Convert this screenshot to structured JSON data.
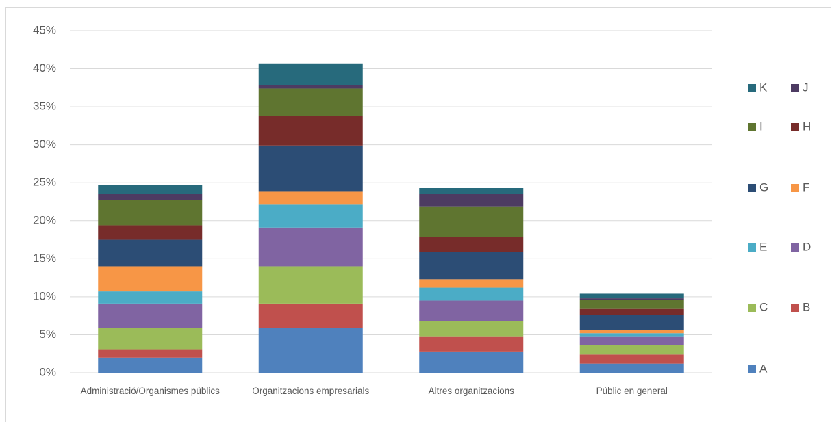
{
  "chart_data": {
    "type": "stacked-bar",
    "categories": [
      "Administració/Organismes públics",
      "Organitzacions empresarials",
      "Altres organitzacions",
      "Públic en general"
    ],
    "series": [
      {
        "name": "A",
        "color": "#4f81bd",
        "values": [
          2.0,
          5.9,
          2.8,
          1.2
        ]
      },
      {
        "name": "B",
        "color": "#c0504d",
        "values": [
          1.1,
          3.2,
          2.0,
          1.2
        ]
      },
      {
        "name": "C",
        "color": "#9bbb59",
        "values": [
          2.8,
          4.9,
          2.0,
          1.2
        ]
      },
      {
        "name": "D",
        "color": "#8064a2",
        "values": [
          3.2,
          5.1,
          2.7,
          1.2
        ]
      },
      {
        "name": "E",
        "color": "#4bacc6",
        "values": [
          1.6,
          3.1,
          1.7,
          0.4
        ]
      },
      {
        "name": "F",
        "color": "#f79646",
        "values": [
          3.3,
          1.7,
          1.1,
          0.4
        ]
      },
      {
        "name": "G",
        "color": "#2c4d75",
        "values": [
          3.5,
          6.0,
          3.6,
          2.0
        ]
      },
      {
        "name": "H",
        "color": "#772c2a",
        "values": [
          1.9,
          3.9,
          2.0,
          0.8
        ]
      },
      {
        "name": "I",
        "color": "#5f7530",
        "values": [
          3.3,
          3.6,
          4.0,
          1.2
        ]
      },
      {
        "name": "J",
        "color": "#4d3b62",
        "values": [
          0.8,
          0.4,
          1.6,
          0.2
        ]
      },
      {
        "name": "K",
        "color": "#276a7c",
        "values": [
          1.2,
          2.9,
          0.8,
          0.6
        ]
      }
    ],
    "ylim": [
      0,
      45
    ],
    "yticks": [
      {
        "value": 0,
        "label": "0%"
      },
      {
        "value": 5,
        "label": "5%"
      },
      {
        "value": 10,
        "label": "10%"
      },
      {
        "value": 15,
        "label": "15%"
      },
      {
        "value": 20,
        "label": "20%"
      },
      {
        "value": 25,
        "label": "25%"
      },
      {
        "value": 30,
        "label": "30%"
      },
      {
        "value": 35,
        "label": "35%"
      },
      {
        "value": 40,
        "label": "40%"
      },
      {
        "value": 45,
        "label": "45%"
      }
    ],
    "grid": true
  }
}
